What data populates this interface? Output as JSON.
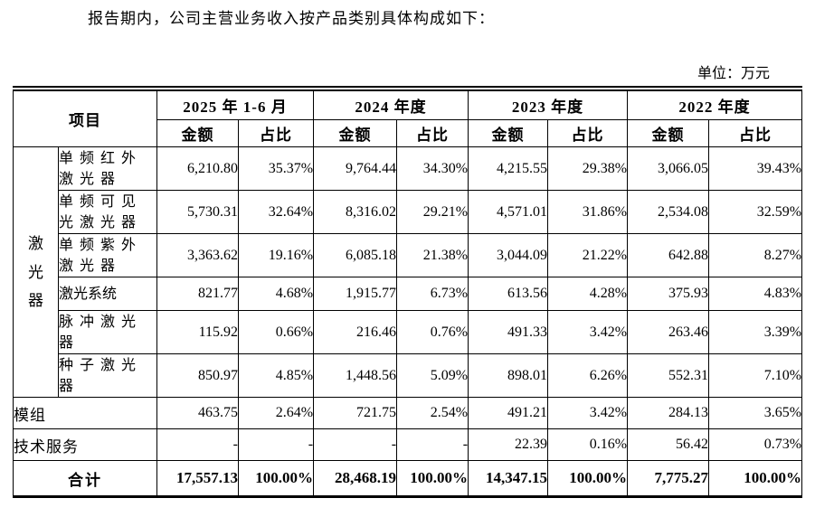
{
  "colors": {
    "border": "#000000",
    "text": "#000000",
    "background": "#ffffff"
  },
  "page": {
    "intro": "报告期内，公司主营业务收入按产品类别具体构成如下：",
    "unit_label": "单位：万元"
  },
  "table": {
    "header": {
      "item": "项目",
      "periods": [
        "2025 年 1-6 月",
        "2024 年度",
        "2023 年度",
        "2022 年度"
      ],
      "amount": "金额",
      "ratio": "占比"
    },
    "group_label": "激\n光\n器",
    "laser_rows": [
      {
        "label": "单频红外\n激光器",
        "values": [
          "6,210.80",
          "35.37%",
          "9,764.44",
          "34.30%",
          "4,215.55",
          "29.38%",
          "3,066.05",
          "39.43%"
        ]
      },
      {
        "label": "单频可见\n光激光器",
        "values": [
          "5,730.31",
          "32.64%",
          "8,316.02",
          "29.21%",
          "4,571.01",
          "31.86%",
          "2,534.08",
          "32.59%"
        ]
      },
      {
        "label": "单频紫外\n激光器",
        "values": [
          "3,363.62",
          "19.16%",
          "6,085.18",
          "21.38%",
          "3,044.09",
          "21.22%",
          "642.88",
          "8.27%"
        ]
      },
      {
        "label": "激光系统",
        "values": [
          "821.77",
          "4.68%",
          "1,915.77",
          "6.73%",
          "613.56",
          "4.28%",
          "375.93",
          "4.83%"
        ]
      },
      {
        "label": "脉冲激光\n器",
        "values": [
          "115.92",
          "0.66%",
          "216.46",
          "0.76%",
          "491.33",
          "3.42%",
          "263.46",
          "3.39%"
        ]
      },
      {
        "label": "种子激光\n器",
        "values": [
          "850.97",
          "4.85%",
          "1,448.56",
          "5.09%",
          "898.01",
          "6.26%",
          "552.31",
          "7.10%"
        ]
      }
    ],
    "other_rows": [
      {
        "label": "模组",
        "values": [
          "463.75",
          "2.64%",
          "721.75",
          "2.54%",
          "491.21",
          "3.42%",
          "284.13",
          "3.65%"
        ]
      },
      {
        "label": "技术服务",
        "values": [
          "-",
          "-",
          "-",
          "-",
          "22.39",
          "0.16%",
          "56.42",
          "0.73%"
        ]
      }
    ],
    "total_row": {
      "label": "合计",
      "values": [
        "17,557.13",
        "100.00%",
        "28,468.19",
        "100.00%",
        "14,347.15",
        "100.00%",
        "7,775.27",
        "100.00%"
      ]
    }
  }
}
